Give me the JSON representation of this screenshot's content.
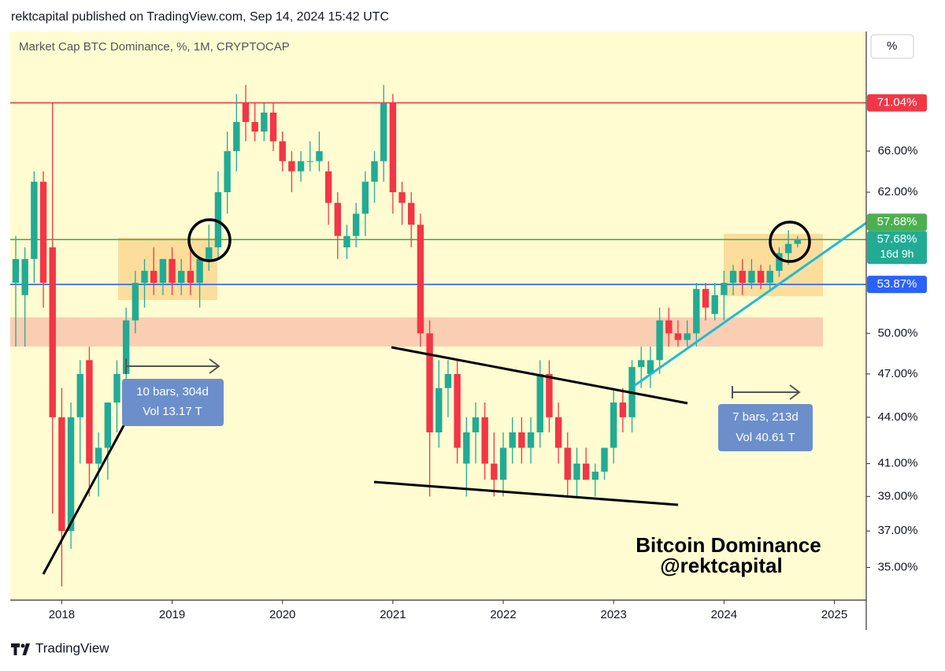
{
  "chart_data": {
    "type": "candlestick",
    "header": "rektcapital published on TradingView.com, Sep 14, 2024 15:42 UTC",
    "title": "Market Cap BTC Dominance, %, 1M, CRYPTOCAP",
    "scale_button": "%",
    "brand": "TradingView",
    "log_scale": true,
    "up_color": "#22ab94",
    "down_color": "#f23645",
    "categories": [
      null,
      null,
      null,
      null,
      null,
      "2018",
      null,
      null,
      null,
      null,
      null,
      null,
      null,
      null,
      null,
      null,
      null,
      "2019",
      null,
      null,
      null,
      null,
      null,
      null,
      null,
      null,
      null,
      null,
      null,
      "2020",
      null,
      null,
      null,
      null,
      null,
      null,
      null,
      null,
      null,
      null,
      null,
      "2021",
      null,
      null,
      null,
      null,
      null,
      null,
      null,
      null,
      null,
      null,
      null,
      "2022",
      null,
      null,
      null,
      null,
      null,
      null,
      null,
      null,
      null,
      null,
      null,
      "2023",
      null,
      null,
      null,
      null,
      null,
      null,
      null,
      null,
      null,
      null,
      null,
      "2024",
      null,
      null,
      null,
      null,
      null,
      null,
      null,
      null,
      null,
      null,
      null,
      "2025"
    ],
    "open": [
      54,
      53,
      56,
      63,
      57,
      44,
      37,
      44,
      48,
      41,
      42,
      45,
      47,
      51,
      54,
      55,
      54,
      56,
      54,
      55,
      54,
      56,
      57,
      62,
      66,
      71,
      69,
      68,
      70,
      67,
      65,
      64,
      65,
      65,
      64,
      61,
      57,
      58,
      60,
      63,
      65,
      71,
      62,
      61,
      59,
      50,
      43,
      46,
      47,
      41,
      43,
      44,
      41,
      40,
      42,
      43,
      42,
      43,
      47,
      44,
      42,
      40,
      41,
      40,
      40.5,
      42,
      45,
      44,
      47.5,
      47,
      48,
      51,
      50,
      49.5,
      50,
      53.5,
      51.5,
      53,
      54,
      55,
      54,
      55,
      54,
      55,
      56.5,
      57.3,
      null,
      null,
      null,
      null
    ],
    "high": [
      58,
      57,
      64,
      64,
      71,
      46,
      45,
      48,
      49,
      43,
      45,
      48,
      52,
      55,
      56,
      57,
      56,
      57,
      56,
      57,
      56,
      59,
      64,
      68,
      72,
      73,
      71,
      71,
      71,
      68,
      66,
      66,
      67,
      68,
      65,
      62,
      59,
      61,
      64,
      66,
      73,
      72,
      63,
      62,
      60,
      51,
      48,
      48,
      48,
      44,
      45,
      45,
      43,
      43,
      44,
      44,
      44,
      48,
      48,
      45,
      43,
      42,
      42,
      41,
      42,
      46,
      46,
      48,
      49,
      49,
      52,
      52,
      51,
      51,
      54,
      54,
      54,
      55,
      55.5,
      56,
      56,
      55.5,
      55.5,
      57,
      58.5,
      58,
      null,
      null,
      null,
      null
    ],
    "low": [
      49,
      49,
      54,
      52,
      38,
      34,
      36,
      41,
      39,
      39,
      40,
      43,
      46,
      50,
      52,
      53,
      53,
      53,
      53,
      53,
      52,
      55,
      56,
      60,
      64,
      67,
      67,
      67,
      66,
      64,
      62,
      63,
      64,
      64,
      59,
      56,
      56,
      57,
      58,
      61,
      63,
      60,
      59,
      57,
      49,
      39,
      42,
      44,
      41,
      39,
      41,
      40,
      39,
      39,
      41,
      41,
      41,
      42,
      43,
      41,
      39,
      39,
      40,
      39,
      40,
      41,
      43,
      43,
      46,
      46,
      47,
      49,
      49,
      49,
      49,
      51,
      51,
      51,
      53,
      53,
      53.5,
      53.5,
      53.5,
      54.5,
      55.5,
      57,
      null,
      null,
      null,
      null
    ],
    "close": [
      56,
      56,
      63,
      54,
      44,
      37,
      44,
      47,
      41,
      42,
      45,
      47,
      51,
      54,
      55,
      54,
      56,
      54,
      55,
      54,
      56,
      57,
      62,
      66,
      69,
      69,
      68,
      70,
      67,
      65,
      64,
      65,
      65,
      66,
      61,
      58,
      58,
      60,
      63,
      65,
      71,
      62,
      61,
      59,
      50,
      43,
      46,
      47,
      42,
      43,
      44,
      41,
      40,
      42,
      43,
      42,
      43,
      47,
      44,
      42,
      40,
      41,
      40,
      40.5,
      42,
      45,
      44,
      47.5,
      48,
      48,
      51,
      50,
      49.5,
      50,
      53.5,
      52,
      53,
      54,
      55,
      54,
      55,
      54,
      55,
      56.5,
      57.3,
      57.68,
      null,
      null,
      null,
      null
    ],
    "ylim": [
      33.3,
      79.2
    ],
    "yticks": [
      {
        "value": 35,
        "label": "35.00%"
      },
      {
        "value": 37,
        "label": "37.00%"
      },
      {
        "value": 39,
        "label": "39.00%"
      },
      {
        "value": 41,
        "label": "41.00%"
      },
      {
        "value": 44,
        "label": "44.00%"
      },
      {
        "value": 47,
        "label": "47.00%"
      },
      {
        "value": 50,
        "label": "50.00%"
      },
      {
        "value": 62,
        "label": "62.00%"
      },
      {
        "value": 66,
        "label": "66.00%"
      }
    ],
    "hlines": [
      {
        "value": 71.04,
        "label": "71.04%",
        "color": "#f23645"
      },
      {
        "value": 57.68,
        "label": "57.68%",
        "color": "#4caf50"
      },
      {
        "value": 53.87,
        "label": "53.87%",
        "color": "#2962ff"
      }
    ],
    "last_price": {
      "value": 57.68,
      "label": "57.68%",
      "countdown": "16d 9h",
      "color": "#22ab94"
    },
    "measures": [
      {
        "bars": "10 bars, 304d",
        "vol": "Vol 13.17 T"
      },
      {
        "bars": "7 bars, 213d",
        "vol": "Vol 40.61 T"
      }
    ],
    "watermark": [
      "Bitcoin Dominance",
      "@rektcapital"
    ]
  }
}
